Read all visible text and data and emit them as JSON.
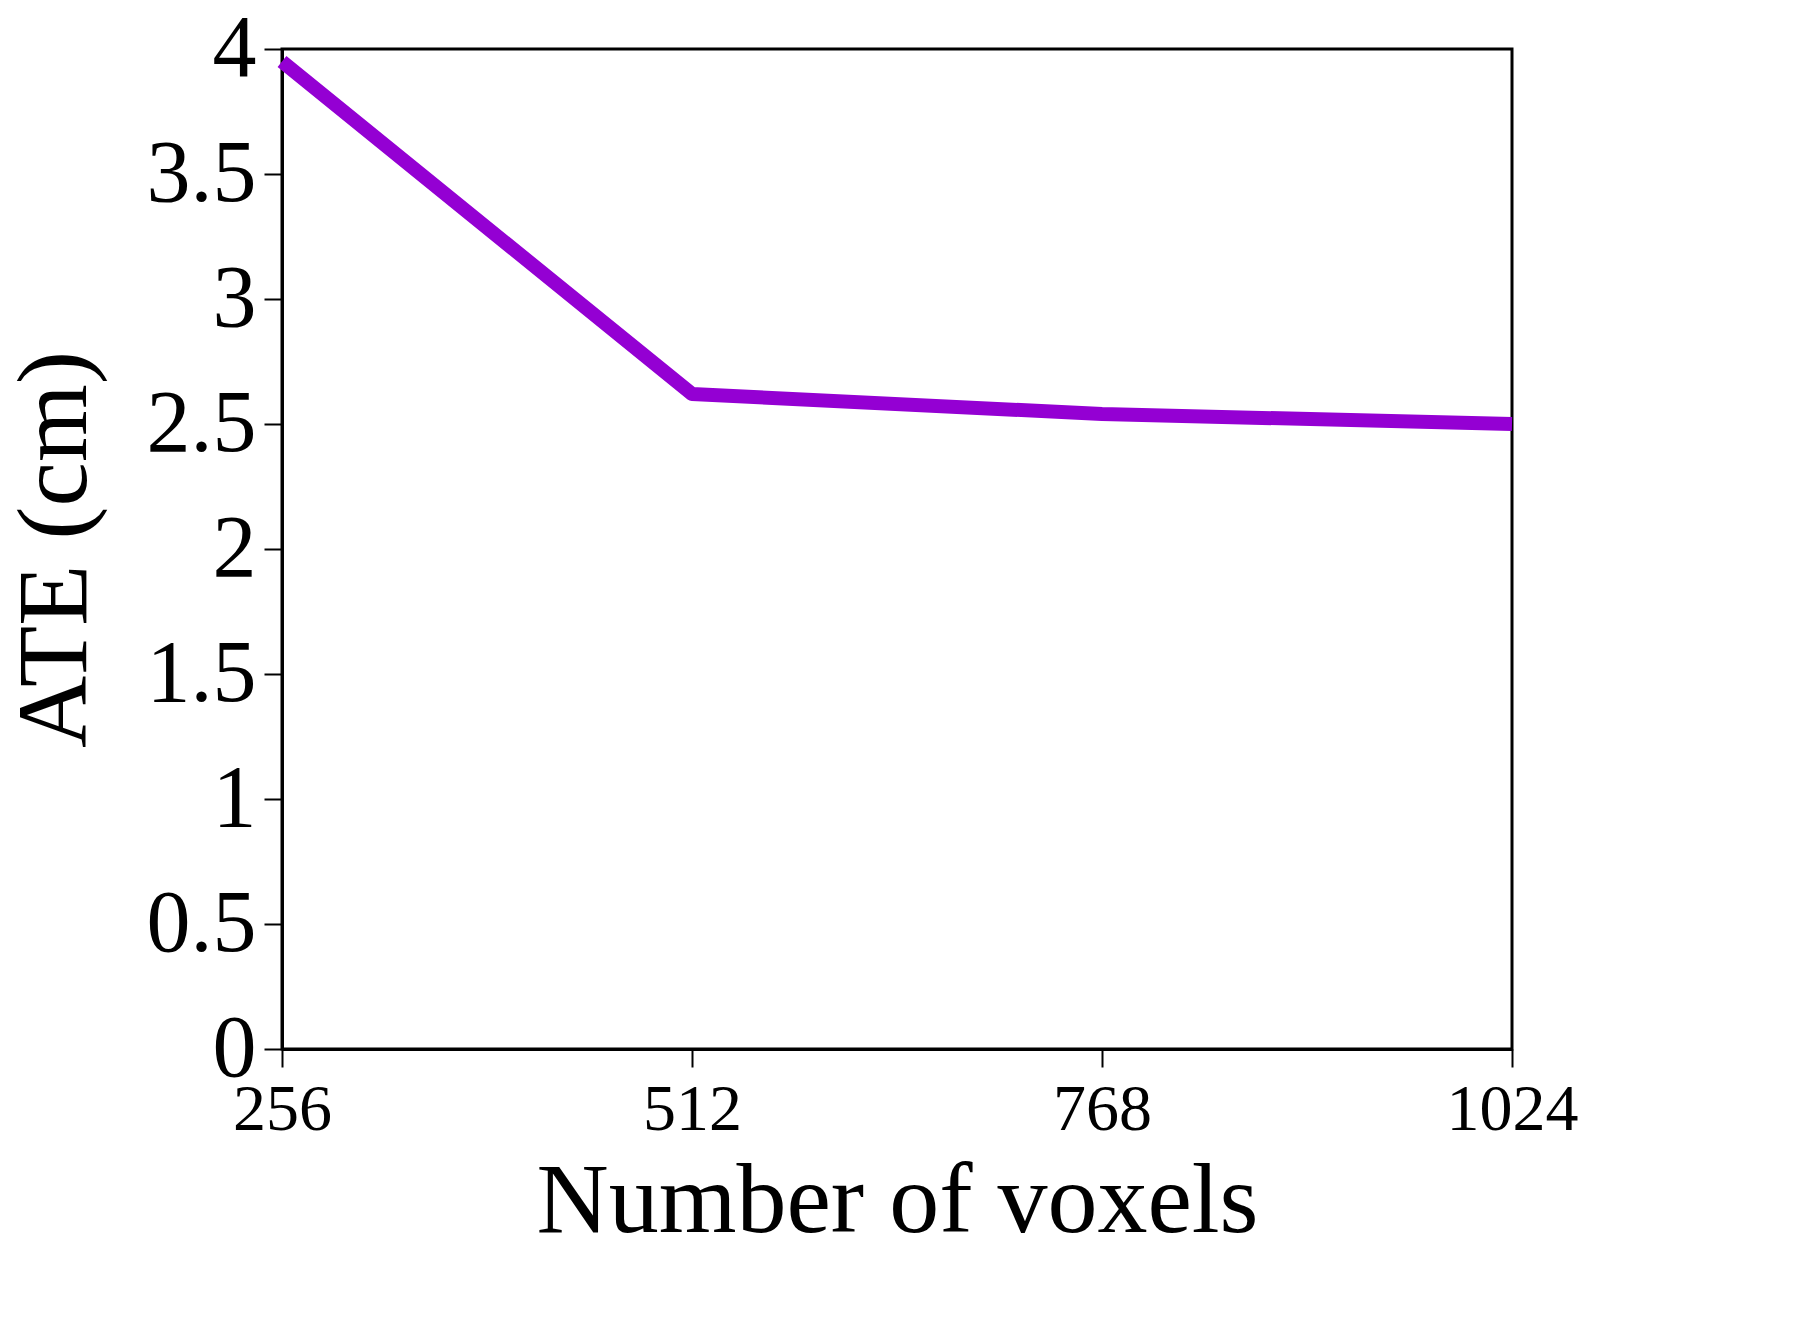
{
  "chart_data": {
    "type": "line",
    "xlabel": "Number of voxels",
    "ylabel": "ATE (cm)",
    "x": [
      256,
      512,
      768,
      1024
    ],
    "series": [
      {
        "color": "#9400d3",
        "values": [
          3.95,
          2.62,
          2.54,
          2.5
        ]
      }
    ],
    "xlim": [
      256,
      1024
    ],
    "xticks": [
      256,
      512,
      768,
      1024
    ],
    "ylim": [
      0,
      4
    ],
    "yticks": [
      0,
      0.5,
      1,
      1.5,
      2,
      2.5,
      3,
      3.5,
      4
    ],
    "grid": false,
    "marker": "none",
    "line_style": "solid"
  }
}
